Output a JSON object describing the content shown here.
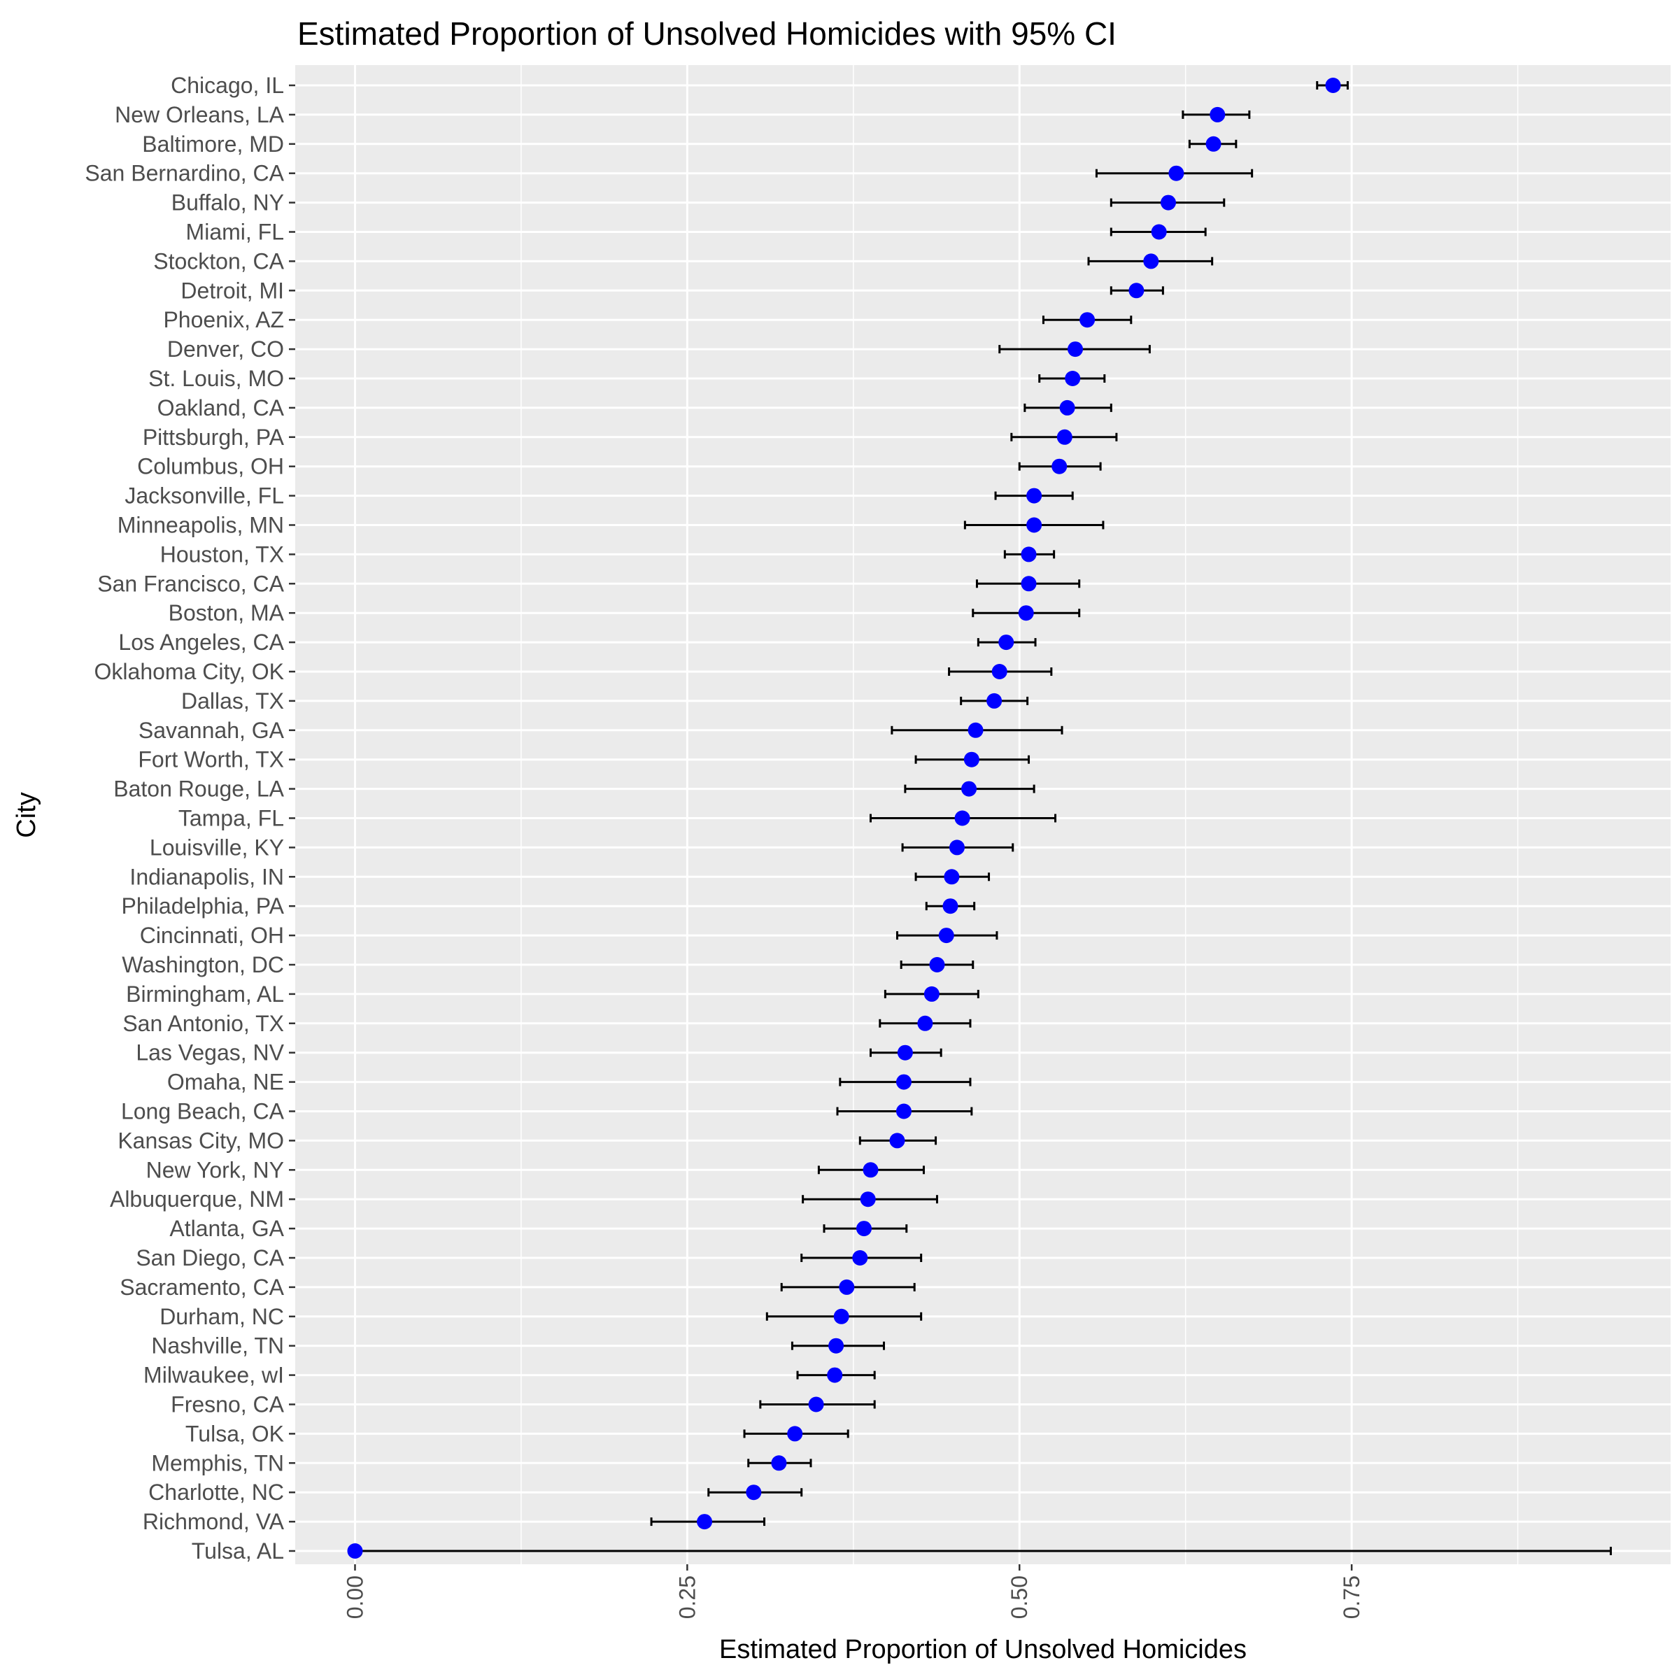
{
  "chart_data": {
    "type": "scatter",
    "title": "Estimated Proportion of Unsolved Homicides with 95% CI",
    "xlabel": "Estimated Proportion of Unsolved Homicides",
    "ylabel": "City",
    "xlim": [
      -0.045,
      0.99
    ],
    "xticks": [
      0,
      0.25,
      0.5,
      0.75
    ],
    "xtick_labels": [
      "0.00",
      "0.25",
      "0.50",
      "0.75"
    ],
    "grid": true,
    "point_color": "#0000ff",
    "errorbar_color": "#000000",
    "panel_background": "#ebebeb",
    "gridline_color": "#ffffff",
    "points": [
      {
        "city": "Chicago, IL",
        "estimate": 0.736,
        "lower": 0.724,
        "upper": 0.747
      },
      {
        "city": "New Orleans, LA",
        "estimate": 0.649,
        "lower": 0.623,
        "upper": 0.673
      },
      {
        "city": "Baltimore, MD",
        "estimate": 0.646,
        "lower": 0.628,
        "upper": 0.663
      },
      {
        "city": "San Bernardino, CA",
        "estimate": 0.618,
        "lower": 0.558,
        "upper": 0.675
      },
      {
        "city": "Buffalo, NY",
        "estimate": 0.612,
        "lower": 0.569,
        "upper": 0.654
      },
      {
        "city": "Miami, FL",
        "estimate": 0.605,
        "lower": 0.569,
        "upper": 0.64
      },
      {
        "city": "Stockton, CA",
        "estimate": 0.599,
        "lower": 0.552,
        "upper": 0.645
      },
      {
        "city": "Detroit, MI",
        "estimate": 0.588,
        "lower": 0.569,
        "upper": 0.608
      },
      {
        "city": "Phoenix, AZ",
        "estimate": 0.551,
        "lower": 0.518,
        "upper": 0.584
      },
      {
        "city": "Denver, CO",
        "estimate": 0.542,
        "lower": 0.485,
        "upper": 0.598
      },
      {
        "city": "St. Louis, MO",
        "estimate": 0.54,
        "lower": 0.515,
        "upper": 0.564
      },
      {
        "city": "Oakland, CA",
        "estimate": 0.536,
        "lower": 0.504,
        "upper": 0.569
      },
      {
        "city": "Pittsburgh, PA",
        "estimate": 0.534,
        "lower": 0.494,
        "upper": 0.573
      },
      {
        "city": "Columbus, OH",
        "estimate": 0.53,
        "lower": 0.5,
        "upper": 0.561
      },
      {
        "city": "Jacksonville, FL",
        "estimate": 0.511,
        "lower": 0.482,
        "upper": 0.54
      },
      {
        "city": "Minneapolis, MN",
        "estimate": 0.511,
        "lower": 0.459,
        "upper": 0.563
      },
      {
        "city": "Houston, TX",
        "estimate": 0.507,
        "lower": 0.489,
        "upper": 0.526
      },
      {
        "city": "San Francisco, CA",
        "estimate": 0.507,
        "lower": 0.468,
        "upper": 0.545
      },
      {
        "city": "Boston, MA",
        "estimate": 0.505,
        "lower": 0.465,
        "upper": 0.545
      },
      {
        "city": "Los Angeles, CA",
        "estimate": 0.49,
        "lower": 0.469,
        "upper": 0.512
      },
      {
        "city": "Oklahoma City, OK",
        "estimate": 0.485,
        "lower": 0.447,
        "upper": 0.524
      },
      {
        "city": "Dallas, TX",
        "estimate": 0.481,
        "lower": 0.456,
        "upper": 0.506
      },
      {
        "city": "Savannah, GA",
        "estimate": 0.467,
        "lower": 0.404,
        "upper": 0.532
      },
      {
        "city": "Fort Worth, TX",
        "estimate": 0.464,
        "lower": 0.422,
        "upper": 0.507
      },
      {
        "city": "Baton Rouge, LA",
        "estimate": 0.462,
        "lower": 0.414,
        "upper": 0.511
      },
      {
        "city": "Tampa, FL",
        "estimate": 0.457,
        "lower": 0.388,
        "upper": 0.527
      },
      {
        "city": "Louisville, KY",
        "estimate": 0.453,
        "lower": 0.412,
        "upper": 0.495
      },
      {
        "city": "Indianapolis, IN",
        "estimate": 0.449,
        "lower": 0.422,
        "upper": 0.477
      },
      {
        "city": "Philadelphia, PA",
        "estimate": 0.448,
        "lower": 0.43,
        "upper": 0.466
      },
      {
        "city": "Cincinnati, OH",
        "estimate": 0.445,
        "lower": 0.408,
        "upper": 0.483
      },
      {
        "city": "Washington, DC",
        "estimate": 0.438,
        "lower": 0.411,
        "upper": 0.465
      },
      {
        "city": "Birmingham, AL",
        "estimate": 0.434,
        "lower": 0.399,
        "upper": 0.469
      },
      {
        "city": "San Antonio, TX",
        "estimate": 0.429,
        "lower": 0.395,
        "upper": 0.463
      },
      {
        "city": "Las Vegas, NV",
        "estimate": 0.414,
        "lower": 0.388,
        "upper": 0.441
      },
      {
        "city": "Omaha, NE",
        "estimate": 0.413,
        "lower": 0.365,
        "upper": 0.463
      },
      {
        "city": "Long Beach, CA",
        "estimate": 0.413,
        "lower": 0.363,
        "upper": 0.464
      },
      {
        "city": "Kansas City, MO",
        "estimate": 0.408,
        "lower": 0.38,
        "upper": 0.437
      },
      {
        "city": "New York, NY",
        "estimate": 0.388,
        "lower": 0.349,
        "upper": 0.428
      },
      {
        "city": "Albuquerque, NM",
        "estimate": 0.386,
        "lower": 0.337,
        "upper": 0.438
      },
      {
        "city": "Atlanta, GA",
        "estimate": 0.383,
        "lower": 0.353,
        "upper": 0.415
      },
      {
        "city": "San Diego, CA",
        "estimate": 0.38,
        "lower": 0.336,
        "upper": 0.426
      },
      {
        "city": "Sacramento, CA",
        "estimate": 0.37,
        "lower": 0.321,
        "upper": 0.421
      },
      {
        "city": "Durham, NC",
        "estimate": 0.366,
        "lower": 0.31,
        "upper": 0.426
      },
      {
        "city": "Nashville, TN",
        "estimate": 0.362,
        "lower": 0.329,
        "upper": 0.398
      },
      {
        "city": "Milwaukee, wI",
        "estimate": 0.361,
        "lower": 0.333,
        "upper": 0.391
      },
      {
        "city": "Fresno, CA",
        "estimate": 0.347,
        "lower": 0.305,
        "upper": 0.391
      },
      {
        "city": "Tulsa, OK",
        "estimate": 0.331,
        "lower": 0.293,
        "upper": 0.371
      },
      {
        "city": "Memphis, TN",
        "estimate": 0.319,
        "lower": 0.296,
        "upper": 0.343
      },
      {
        "city": "Charlotte, NC",
        "estimate": 0.3,
        "lower": 0.266,
        "upper": 0.336
      },
      {
        "city": "Richmond, VA",
        "estimate": 0.263,
        "lower": 0.223,
        "upper": 0.308
      },
      {
        "city": "Tulsa, AL",
        "estimate": 0.0,
        "lower": 0.0,
        "upper": 0.945
      }
    ]
  }
}
